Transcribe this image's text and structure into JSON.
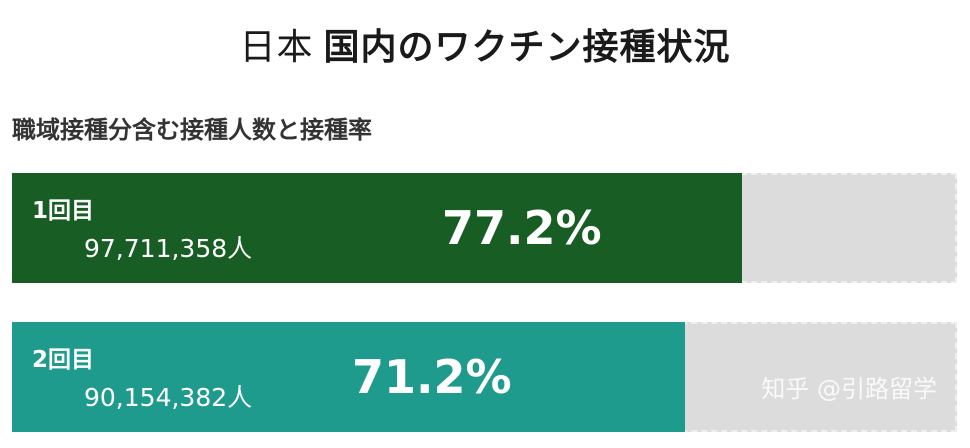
{
  "title_lead": "日本",
  "title_main": "国内のワクチン接種状況",
  "subtitle": "職域接種分含む接種人数と接種率",
  "watermark": "知乎 @引路留学",
  "colors": {
    "dose1": "#185e24",
    "dose2": "#1f9b8e",
    "track": "#dcdcdc"
  },
  "chart_data": {
    "type": "bar",
    "orientation": "horizontal",
    "title": "国内のワクチン接種状況",
    "subtitle": "職域接種分含む接種人数と接種率",
    "categories": [
      "1回目",
      "2回目"
    ],
    "series": [
      {
        "values": [
          77.2,
          71.2
        ],
        "value_labels": [
          "77.2%",
          "71.2%"
        ],
        "counts": [
          "97,711,358人",
          "90,154,382人"
        ]
      }
    ],
    "xlim": [
      0,
      100
    ],
    "grid": false,
    "legend": "none"
  }
}
